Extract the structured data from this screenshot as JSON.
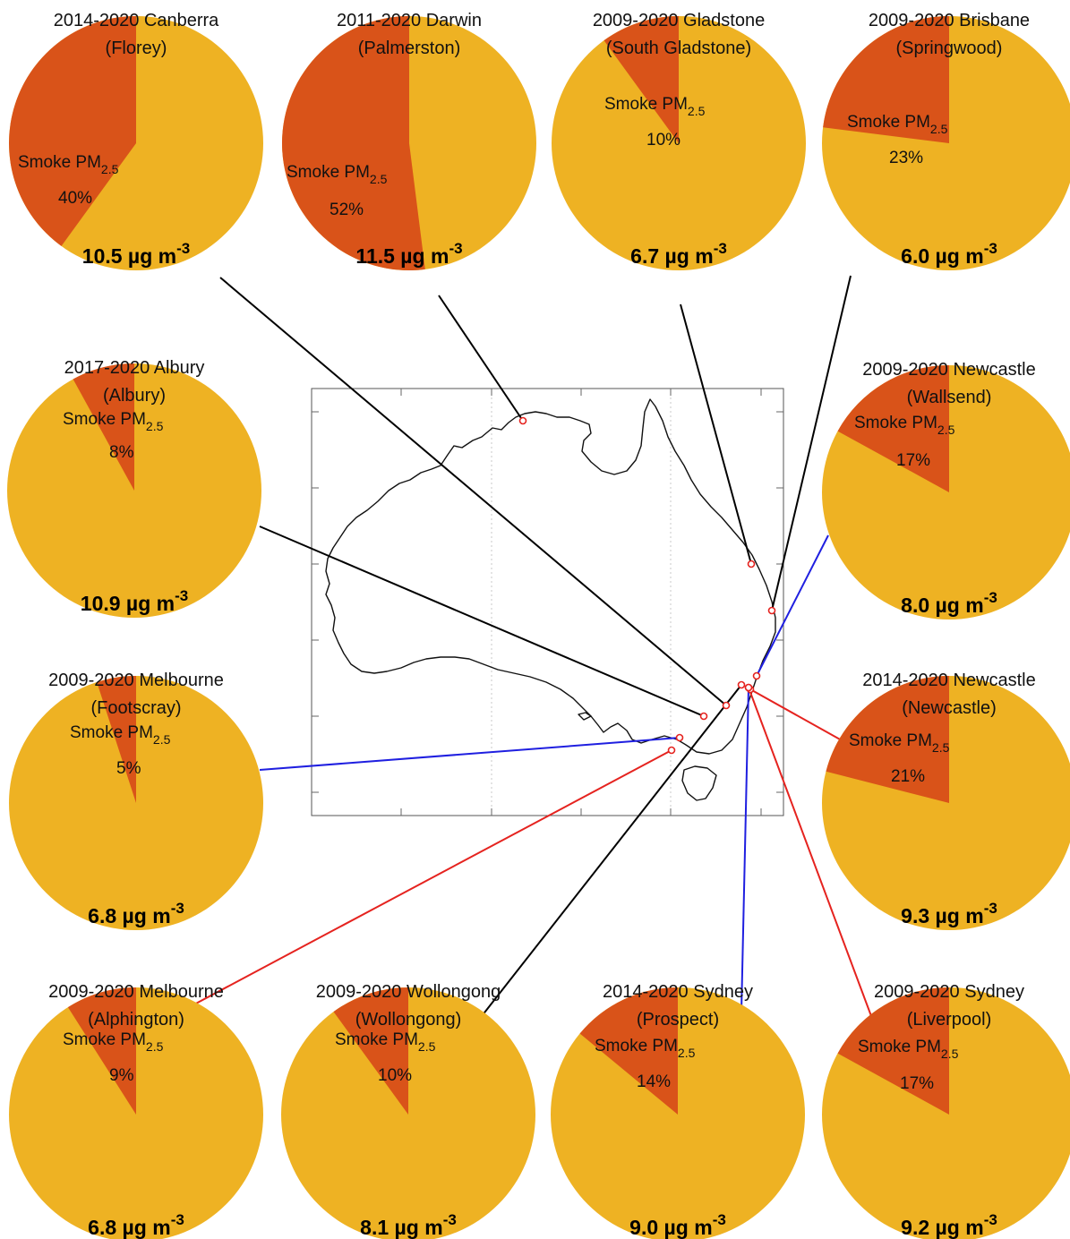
{
  "colors": {
    "background": "#eeb223",
    "smoke": "#d95319",
    "leader_black": "#000000",
    "leader_red": "#e5231f",
    "leader_blue": "#1f1fe0"
  },
  "chart_data": {
    "type": "pie",
    "series_labels": {
      "smoke": "Smoke PM",
      "smoke_subscript": "2.5",
      "unit_prefix": "µg m",
      "unit_exponent": "-3"
    },
    "sites": [
      {
        "period": "2014-2020 Canberra",
        "station": "(Florey)",
        "smoke_pct": 40,
        "smoke_pct_label": "40%",
        "total": 10.5,
        "total_label": "10.5",
        "leader": "black"
      },
      {
        "period": "2011-2020 Darwin",
        "station": "(Palmerston)",
        "smoke_pct": 52,
        "smoke_pct_label": "52%",
        "total": 11.5,
        "total_label": "11.5",
        "leader": "black"
      },
      {
        "period": "2009-2020 Gladstone",
        "station": "(South Gladstone)",
        "smoke_pct": 10,
        "smoke_pct_label": "10%",
        "total": 6.7,
        "total_label": "6.7",
        "leader": "black"
      },
      {
        "period": "2009-2020 Brisbane",
        "station": "(Springwood)",
        "smoke_pct": 23,
        "smoke_pct_label": "23%",
        "total": 6.0,
        "total_label": "6.0",
        "leader": "black"
      },
      {
        "period": "2017-2020 Albury",
        "station": "(Albury)",
        "smoke_pct": 8,
        "smoke_pct_label": "8%",
        "total": 10.9,
        "total_label": "10.9",
        "leader": "black"
      },
      {
        "period": "2009-2020 Newcastle",
        "station": "(Wallsend)",
        "smoke_pct": 17,
        "smoke_pct_label": "17%",
        "total": 8.0,
        "total_label": "8.0",
        "leader": "blue"
      },
      {
        "period": "2009-2020 Melbourne",
        "station": "(Footscray)",
        "smoke_pct": 5,
        "smoke_pct_label": "5%",
        "total": 6.8,
        "total_label": "6.8",
        "leader": "blue"
      },
      {
        "period": "2014-2020 Newcastle",
        "station": "(Newcastle)",
        "smoke_pct": 21,
        "smoke_pct_label": "21%",
        "total": 9.3,
        "total_label": "9.3",
        "leader": "red"
      },
      {
        "period": "2009-2020 Melbourne",
        "station": "(Alphington)",
        "smoke_pct": 9,
        "smoke_pct_label": "9%",
        "total": 6.8,
        "total_label": "6.8",
        "leader": "red"
      },
      {
        "period": "2009-2020 Wollongong",
        "station": "(Wollongong)",
        "smoke_pct": 10,
        "smoke_pct_label": "10%",
        "total": 8.1,
        "total_label": "8.1",
        "leader": "black"
      },
      {
        "period": "2014-2020 Sydney",
        "station": "(Prospect)",
        "smoke_pct": 14,
        "smoke_pct_label": "14%",
        "total": 9.0,
        "total_label": "9.0",
        "leader": "blue"
      },
      {
        "period": "2009-2020 Sydney",
        "station": "(Liverpool)",
        "smoke_pct": 17,
        "smoke_pct_label": "17%",
        "total": 9.2,
        "total_label": "9.2",
        "leader": "red"
      }
    ]
  }
}
